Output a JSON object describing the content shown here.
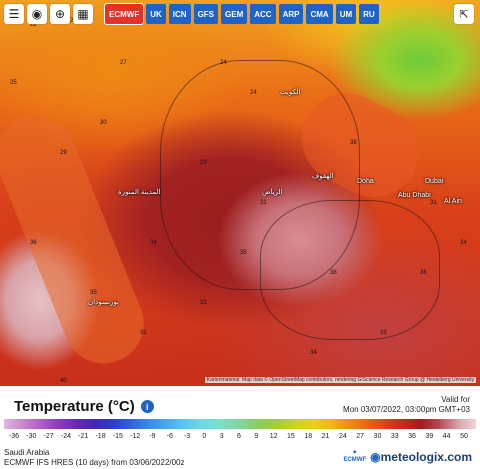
{
  "toolbar": {
    "tools": [
      {
        "name": "menu-icon",
        "glyph": "☰"
      },
      {
        "name": "location-icon",
        "glyph": "◉"
      },
      {
        "name": "zoom-icon",
        "glyph": "⊕"
      },
      {
        "name": "map-icon",
        "glyph": "▦"
      }
    ],
    "models": [
      "ECMWF",
      "UK",
      "ICN",
      "GFS",
      "GEM",
      "ACC",
      "ARP",
      "CMA",
      "UM",
      "RU"
    ],
    "active_model": "ECMWF",
    "share_icon": "share-icon"
  },
  "map": {
    "cities": [
      "الكويت",
      "Doha",
      "Abu Dhabi",
      "Dubai",
      "Al Ain",
      "الرياض",
      "المدينة المنورة",
      "بورتسودان",
      "الهفوف"
    ],
    "temps": [
      "22",
      "22",
      "27",
      "24",
      "24",
      "29",
      "31",
      "36",
      "35",
      "34",
      "38",
      "36",
      "38",
      "31",
      "33",
      "40",
      "34",
      "25",
      "29",
      "30",
      "35",
      "32",
      "31",
      "34"
    ],
    "attribution": "Kartenmaterial: Map data © OpenStreetMap contributors, rendering GIScience Research Group @ Heidelberg University"
  },
  "legend": {
    "title": "Temperature (°C)",
    "info_glyph": "i",
    "valid_label": "Valid for",
    "valid_time": "Mon 03/07/2022, 03:00pm GMT+03",
    "ticks": [
      "-36",
      "-30",
      "-27",
      "-24",
      "-21",
      "-18",
      "-15",
      "-12",
      "-9",
      "-6",
      "-3",
      "0",
      "3",
      "6",
      "9",
      "12",
      "15",
      "18",
      "21",
      "24",
      "27",
      "30",
      "33",
      "36",
      "39",
      "44",
      "50"
    ],
    "colors": [
      "#e0b7e0",
      "#c98cd4",
      "#b25ec8",
      "#8f3bbd",
      "#6a29b3",
      "#4126b4",
      "#2b3fc9",
      "#2f63dc",
      "#3a8be6",
      "#48aaef",
      "#5cc8f0",
      "#70dbe6",
      "#7de0c2",
      "#83d69a",
      "#8ccc62",
      "#a4cc34",
      "#c8d421",
      "#e7d21b",
      "#f4b517",
      "#f08c13",
      "#e96713",
      "#db4217",
      "#c6281b",
      "#a31b1e",
      "#b84b5a",
      "#d8a1a8",
      "#f0d5d8"
    ]
  },
  "footer": {
    "region": "Saudi Arabia",
    "model_info": "ECMWF IFS HRES (10 days) from 03/06/2022/00z",
    "ecmwf_label": "ECMWF",
    "brand": "meteologix",
    "brand_suffix": ".com"
  }
}
